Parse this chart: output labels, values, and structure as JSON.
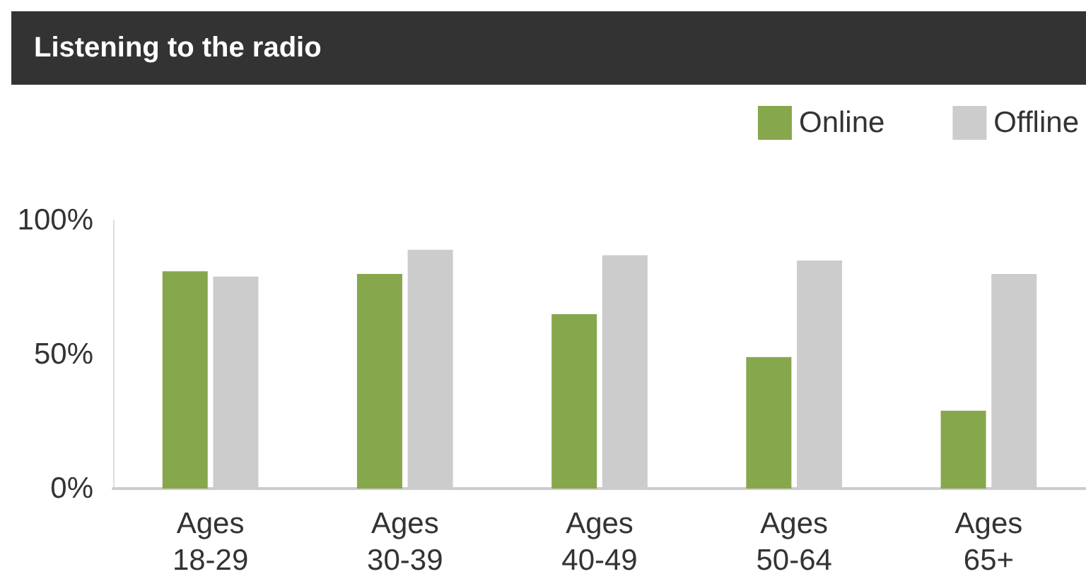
{
  "chart_data": {
    "type": "bar",
    "title": "Listening to the radio",
    "categories": [
      "Ages\n18-29",
      "Ages\n30-39",
      "Ages\n40-49",
      "Ages\n50-64",
      "Ages\n65+"
    ],
    "series": [
      {
        "name": "Online",
        "color": "#87a74c",
        "values": [
          81,
          80,
          65,
          49,
          29
        ]
      },
      {
        "name": "Offline",
        "color": "#cccccc",
        "values": [
          79,
          89,
          87,
          85,
          80
        ]
      }
    ],
    "ylim": [
      0,
      100
    ],
    "yticks": [
      {
        "value": 0,
        "label": "0%"
      },
      {
        "value": 50,
        "label": "50%"
      },
      {
        "value": 100,
        "label": "100%"
      }
    ],
    "grid": false,
    "legend": "top right"
  }
}
